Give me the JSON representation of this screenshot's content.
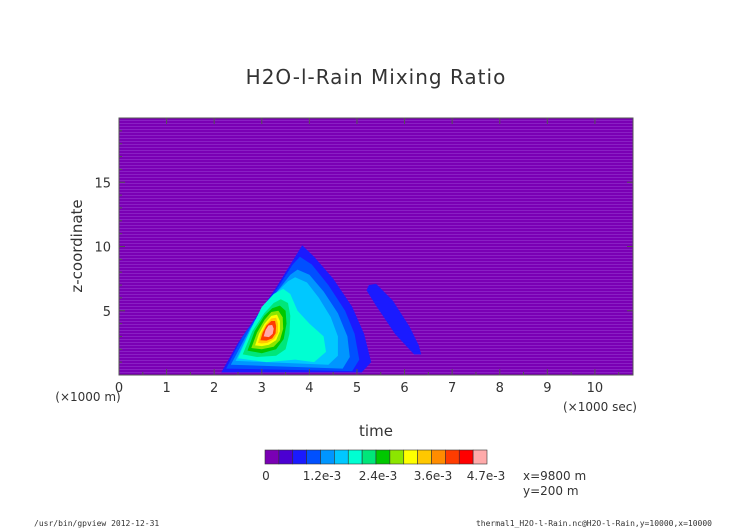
{
  "chart_data": {
    "type": "heatmap",
    "title": "H2O-l-Rain Mixing Ratio",
    "xlabel": "time",
    "x_unit": "(×1000 sec)",
    "ylabel": "z-coordinate",
    "y_unit": "(×1000 m)",
    "xlim": [
      0,
      10.8
    ],
    "ylim": [
      0,
      20
    ],
    "x_ticks": [
      0,
      1,
      2,
      3,
      4,
      5,
      6,
      7,
      8,
      9,
      10
    ],
    "y_ticks": [
      5,
      10,
      15
    ],
    "grid": false,
    "colorbar": {
      "tick_labels": [
        "0",
        "1.2e-3",
        "2.4e-3",
        "3.6e-3",
        "4.7e-3"
      ],
      "colors": [
        "#7a00b4",
        "#4b00d2",
        "#1a1aff",
        "#0050ff",
        "#0096ff",
        "#00c8ff",
        "#00ffd2",
        "#00e67a",
        "#00c800",
        "#8ce600",
        "#ffff00",
        "#ffc800",
        "#ff8c00",
        "#ff3c00",
        "#ff0000",
        "#ffaaaa"
      ]
    },
    "contours": [
      {
        "level_index": 1,
        "color": "#1a1aff",
        "points": [
          [
            2.15,
            0.2
          ],
          [
            2.5,
            2.5
          ],
          [
            3.3,
            6.8
          ],
          [
            3.7,
            9.2
          ],
          [
            3.85,
            10.1
          ],
          [
            4.1,
            9.2
          ],
          [
            4.5,
            7.5
          ],
          [
            4.9,
            5.3
          ],
          [
            5.15,
            3.2
          ],
          [
            5.3,
            1.0
          ],
          [
            5.1,
            0.2
          ]
        ]
      },
      {
        "level_index": 1,
        "color": "#1a1aff",
        "points": [
          [
            5.25,
            7.0
          ],
          [
            5.4,
            7.1
          ],
          [
            5.75,
            5.8
          ],
          [
            6.1,
            3.8
          ],
          [
            6.3,
            2.3
          ],
          [
            6.35,
            1.6
          ],
          [
            6.2,
            1.6
          ],
          [
            5.8,
            3.2
          ],
          [
            5.4,
            5.4
          ],
          [
            5.2,
            6.6
          ]
        ]
      },
      {
        "level_index": 2,
        "color": "#0050ff",
        "points": [
          [
            2.25,
            0.5
          ],
          [
            2.6,
            3.0
          ],
          [
            3.3,
            6.6
          ],
          [
            3.65,
            8.6
          ],
          [
            3.8,
            9.2
          ],
          [
            4.05,
            8.6
          ],
          [
            4.4,
            7.0
          ],
          [
            4.75,
            5.0
          ],
          [
            4.95,
            3.2
          ],
          [
            5.05,
            1.2
          ],
          [
            4.9,
            0.3
          ]
        ]
      },
      {
        "level_index": 3,
        "color": "#0096ff",
        "points": [
          [
            2.35,
            0.8
          ],
          [
            2.75,
            3.6
          ],
          [
            3.3,
            6.4
          ],
          [
            3.6,
            7.8
          ],
          [
            3.75,
            8.2
          ],
          [
            4.0,
            7.8
          ],
          [
            4.3,
            6.5
          ],
          [
            4.6,
            4.8
          ],
          [
            4.8,
            3.0
          ],
          [
            4.85,
            1.4
          ],
          [
            4.7,
            0.5
          ]
        ]
      },
      {
        "level_index": 4,
        "color": "#00c8ff",
        "points": [
          [
            2.45,
            1.1
          ],
          [
            2.85,
            4.2
          ],
          [
            3.3,
            6.4
          ],
          [
            3.55,
            7.3
          ],
          [
            3.7,
            7.6
          ],
          [
            3.95,
            7.2
          ],
          [
            4.2,
            6.0
          ],
          [
            4.45,
            4.5
          ],
          [
            4.6,
            3.0
          ],
          [
            4.6,
            1.5
          ],
          [
            4.4,
            0.8
          ]
        ]
      },
      {
        "level_index": 5,
        "color": "#00ffd2",
        "points": [
          [
            2.5,
            1.3
          ],
          [
            2.75,
            3.4
          ],
          [
            3.0,
            5.3
          ],
          [
            3.25,
            6.3
          ],
          [
            3.45,
            6.7
          ],
          [
            3.6,
            6.3
          ],
          [
            3.75,
            5.0
          ],
          [
            4.0,
            4.0
          ],
          [
            4.3,
            3.0
          ],
          [
            4.35,
            1.8
          ],
          [
            4.1,
            1.0
          ],
          [
            3.7,
            1.2
          ],
          [
            3.1,
            1.0
          ]
        ]
      },
      {
        "level_index": 6,
        "color": "#00e67a",
        "points": [
          [
            2.6,
            1.6
          ],
          [
            2.8,
            3.4
          ],
          [
            3.05,
            4.8
          ],
          [
            3.25,
            5.6
          ],
          [
            3.4,
            5.9
          ],
          [
            3.55,
            5.6
          ],
          [
            3.6,
            4.6
          ],
          [
            3.58,
            3.2
          ],
          [
            3.5,
            2.0
          ],
          [
            3.3,
            1.5
          ],
          [
            2.9,
            1.4
          ]
        ]
      },
      {
        "level_index": 7,
        "color": "#00c800",
        "points": [
          [
            2.7,
            1.9
          ],
          [
            2.85,
            3.4
          ],
          [
            3.05,
            4.6
          ],
          [
            3.22,
            5.2
          ],
          [
            3.38,
            5.4
          ],
          [
            3.5,
            5.0
          ],
          [
            3.52,
            4.0
          ],
          [
            3.46,
            2.8
          ],
          [
            3.3,
            2.0
          ],
          [
            3.0,
            1.7
          ]
        ]
      },
      {
        "level_index": 8,
        "color": "#8ce600",
        "points": [
          [
            2.78,
            2.1
          ],
          [
            2.9,
            3.3
          ],
          [
            3.06,
            4.3
          ],
          [
            3.2,
            4.9
          ],
          [
            3.35,
            5.0
          ],
          [
            3.44,
            4.5
          ],
          [
            3.45,
            3.6
          ],
          [
            3.38,
            2.7
          ],
          [
            3.25,
            2.2
          ],
          [
            3.0,
            2.0
          ]
        ]
      },
      {
        "level_index": 10,
        "color": "#ffff00",
        "points": [
          [
            2.86,
            2.3
          ],
          [
            2.94,
            3.2
          ],
          [
            3.06,
            4.0
          ],
          [
            3.2,
            4.6
          ],
          [
            3.32,
            4.7
          ],
          [
            3.38,
            4.2
          ],
          [
            3.38,
            3.4
          ],
          [
            3.3,
            2.7
          ],
          [
            3.15,
            2.35
          ],
          [
            3.0,
            2.25
          ]
        ]
      },
      {
        "level_index": 11,
        "color": "#ffc800",
        "points": [
          [
            2.92,
            2.5
          ],
          [
            2.98,
            3.2
          ],
          [
            3.08,
            3.9
          ],
          [
            3.2,
            4.4
          ],
          [
            3.3,
            4.45
          ],
          [
            3.34,
            4.0
          ],
          [
            3.34,
            3.3
          ],
          [
            3.26,
            2.8
          ],
          [
            3.12,
            2.5
          ],
          [
            3.0,
            2.45
          ]
        ]
      },
      {
        "level_index": 13,
        "color": "#ff3c00",
        "points": [
          [
            2.97,
            2.7
          ],
          [
            3.02,
            3.3
          ],
          [
            3.1,
            3.85
          ],
          [
            3.2,
            4.2
          ],
          [
            3.28,
            4.2
          ],
          [
            3.3,
            3.8
          ],
          [
            3.29,
            3.25
          ],
          [
            3.22,
            2.85
          ],
          [
            3.1,
            2.68
          ]
        ]
      },
      {
        "level_index": 15,
        "color": "#ffaaaa",
        "points": [
          [
            3.04,
            3.0
          ],
          [
            3.08,
            3.5
          ],
          [
            3.14,
            3.85
          ],
          [
            3.22,
            3.9
          ],
          [
            3.25,
            3.6
          ],
          [
            3.23,
            3.2
          ],
          [
            3.15,
            2.95
          ]
        ]
      }
    ]
  },
  "annotation": {
    "line1": "x=9800 m",
    "line2": "y=200 m"
  },
  "footer": {
    "left": "/usr/bin/gpview  2012-12-31",
    "right": "thermal1_H2O-l-Rain.nc@H2O-l-Rain,y=10000,x=10000"
  }
}
